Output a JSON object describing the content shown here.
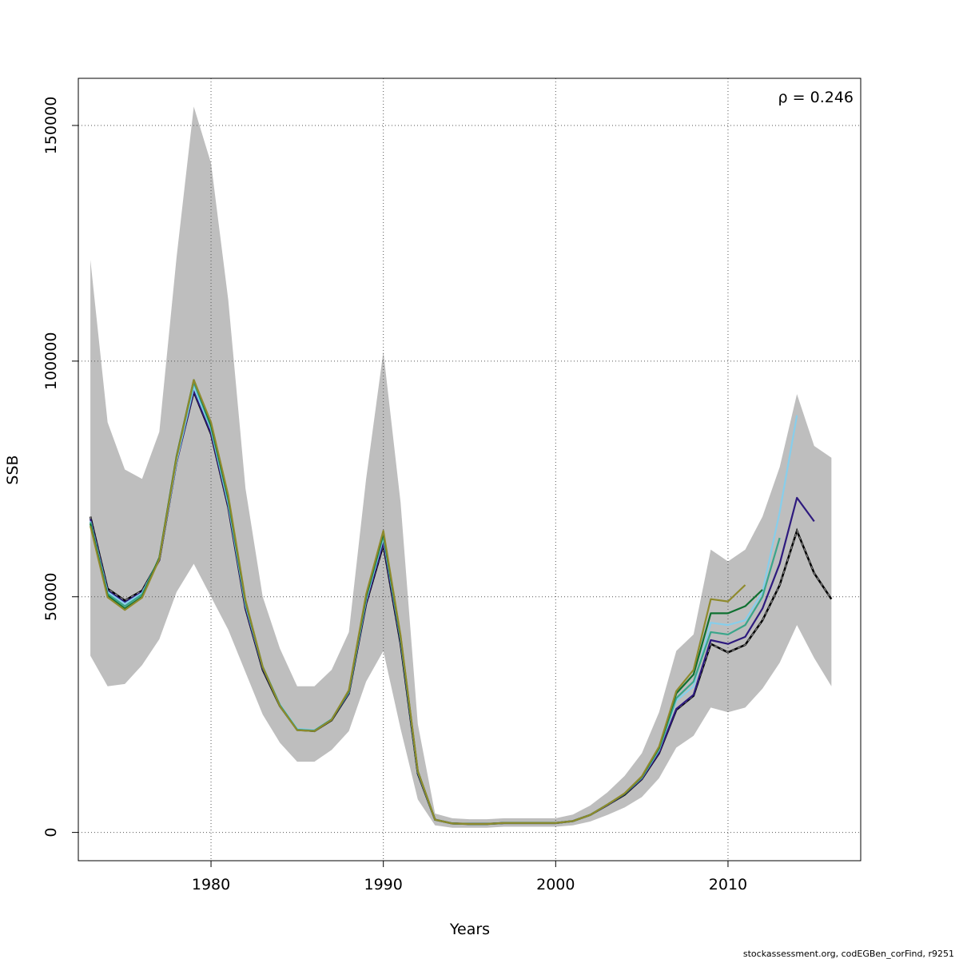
{
  "chart_data": {
    "type": "line",
    "title": "",
    "xlabel": "Years",
    "ylabel": "SSB",
    "xlim": [
      1972.3,
      2017.7
    ],
    "ylim": [
      -6000,
      160000
    ],
    "xticks": [
      "1980",
      "1990",
      "2000",
      "2010"
    ],
    "xtick_values": [
      1980,
      1990,
      2000,
      2010
    ],
    "yticks": [
      "0",
      "50000",
      "100000",
      "150000"
    ],
    "ytick_values": [
      0,
      50000,
      100000,
      150000
    ],
    "grid": true,
    "annotation": "ρ = 0.246",
    "band": {
      "color": "#bebebe",
      "x": [
        1973,
        1974,
        1975,
        1976,
        1977,
        1978,
        1979,
        1980,
        1981,
        1982,
        1983,
        1984,
        1985,
        1986,
        1987,
        1988,
        1989,
        1990,
        1991,
        1992,
        1993,
        1994,
        1995,
        1996,
        1997,
        1998,
        1999,
        2000,
        2001,
        2002,
        2003,
        2004,
        2005,
        2006,
        2007,
        2008,
        2009,
        2010,
        2011,
        2012,
        2013,
        2014,
        2015,
        2016
      ],
      "upper": [
        121500,
        87000,
        77000,
        75000,
        85000,
        122000,
        154000,
        142000,
        113000,
        73000,
        50000,
        39000,
        31000,
        31000,
        34500,
        42500,
        75000,
        102000,
        70000,
        23000,
        4000,
        3000,
        2800,
        2800,
        3000,
        3000,
        3000,
        3000,
        3800,
        5700,
        8500,
        12000,
        16800,
        25500,
        38500,
        42000,
        60000,
        57500,
        60000,
        67000,
        77500,
        93000,
        82000,
        79500
      ],
      "lower": [
        37500,
        31000,
        31500,
        35500,
        41000,
        51000,
        57000,
        50000,
        43000,
        34000,
        25000,
        19000,
        15000,
        15000,
        17500,
        21500,
        32000,
        38500,
        22000,
        7000,
        1500,
        1000,
        1000,
        1000,
        1200,
        1200,
        1200,
        1200,
        1500,
        2300,
        3700,
        5300,
        7500,
        11500,
        18000,
        20500,
        26500,
        25500,
        26500,
        30500,
        36000,
        44000,
        37000,
        31000
      ]
    },
    "series": [
      {
        "color": "#000000",
        "dashed": true,
        "x": [
          1973,
          1974,
          1975,
          1976,
          1977,
          1978,
          1979,
          1980,
          1981,
          1982,
          1983,
          1984,
          1985,
          1986,
          1987,
          1988,
          1989,
          1990,
          1991,
          1992,
          1993,
          1994,
          1995,
          1996,
          1997,
          1998,
          1999,
          2000,
          2001,
          2002,
          2003,
          2004,
          2005,
          2006,
          2007,
          2008,
          2009,
          2010,
          2011,
          2012,
          2013,
          2014,
          2015,
          2016
        ],
        "y": [
          67000,
          51700,
          49200,
          51300,
          57800,
          78700,
          93500,
          84500,
          69000,
          47500,
          34500,
          26800,
          21800,
          21500,
          23800,
          29500,
          48500,
          61000,
          40000,
          12500,
          2700,
          1900,
          1800,
          1800,
          2000,
          2000,
          2000,
          2000,
          2400,
          3700,
          5800,
          8000,
          11300,
          16800,
          26000,
          29000,
          40000,
          38200,
          39800,
          45000,
          52500,
          64000,
          55000,
          49500
        ]
      },
      {
        "color": "#2e1a7e",
        "dashed": false,
        "x": [
          1973,
          1974,
          1975,
          1976,
          1977,
          1978,
          1979,
          1980,
          1981,
          1982,
          1983,
          1984,
          1985,
          1986,
          1987,
          1988,
          1989,
          1990,
          1991,
          1992,
          1993,
          1994,
          1995,
          1996,
          1997,
          1998,
          1999,
          2000,
          2001,
          2002,
          2003,
          2004,
          2005,
          2006,
          2007,
          2008,
          2009,
          2010,
          2011,
          2012,
          2013,
          2014,
          2015
        ],
        "y": [
          66500,
          51300,
          48800,
          51000,
          57800,
          78500,
          93700,
          84700,
          69200,
          47700,
          34700,
          26900,
          21900,
          21600,
          23900,
          29600,
          48700,
          61500,
          40500,
          12700,
          2700,
          1900,
          1800,
          1800,
          2000,
          2000,
          2000,
          2000,
          2400,
          3700,
          5800,
          8100,
          11400,
          16900,
          26200,
          29200,
          40800,
          40000,
          41500,
          47500,
          57000,
          71000,
          66000
        ]
      },
      {
        "color": "#87ceeb",
        "dashed": false,
        "x": [
          1973,
          1974,
          1975,
          1976,
          1977,
          1978,
          1979,
          1980,
          1981,
          1982,
          1983,
          1984,
          1985,
          1986,
          1987,
          1988,
          1989,
          1990,
          1991,
          1992,
          1993,
          1994,
          1995,
          1996,
          1997,
          1998,
          1999,
          2000,
          2001,
          2002,
          2003,
          2004,
          2005,
          2006,
          2007,
          2008,
          2009,
          2010,
          2011,
          2012,
          2013,
          2014
        ],
        "y": [
          66000,
          51000,
          48500,
          50800,
          58000,
          78800,
          94500,
          85500,
          69800,
          48300,
          35000,
          27100,
          22000,
          21700,
          24000,
          29800,
          49300,
          62500,
          41000,
          12800,
          2700,
          1900,
          1800,
          1800,
          2000,
          2000,
          2000,
          2000,
          2400,
          3700,
          5900,
          8200,
          11600,
          17500,
          28000,
          31000,
          44500,
          44000,
          45000,
          51000,
          68000,
          88500
        ]
      },
      {
        "color": "#3aa58a",
        "dashed": false,
        "x": [
          1973,
          1974,
          1975,
          1976,
          1977,
          1978,
          1979,
          1980,
          1981,
          1982,
          1983,
          1984,
          1985,
          1986,
          1987,
          1988,
          1989,
          1990,
          1991,
          1992,
          1993,
          1994,
          1995,
          1996,
          1997,
          1998,
          1999,
          2000,
          2001,
          2002,
          2003,
          2004,
          2005,
          2006,
          2007,
          2008,
          2009,
          2010,
          2011,
          2012,
          2013
        ],
        "y": [
          65800,
          50600,
          48000,
          50500,
          58200,
          79500,
          95500,
          86000,
          70500,
          48800,
          35200,
          27000,
          21800,
          21600,
          24000,
          30000,
          49800,
          63000,
          41200,
          12900,
          2700,
          1900,
          1800,
          1800,
          2000,
          2000,
          2000,
          2000,
          2400,
          3700,
          5900,
          8200,
          11700,
          17700,
          28500,
          32000,
          42500,
          42000,
          44000,
          50000,
          62500
        ]
      },
      {
        "color": "#0f7030",
        "dashed": false,
        "x": [
          1973,
          1974,
          1975,
          1976,
          1977,
          1978,
          1979,
          1980,
          1981,
          1982,
          1983,
          1984,
          1985,
          1986,
          1987,
          1988,
          1989,
          1990,
          1991,
          1992,
          1993,
          1994,
          1995,
          1996,
          1997,
          1998,
          1999,
          2000,
          2001,
          2002,
          2003,
          2004,
          2005,
          2006,
          2007,
          2008,
          2009,
          2010,
          2011,
          2012
        ],
        "y": [
          65500,
          50200,
          47500,
          50000,
          58300,
          79800,
          96000,
          86500,
          71000,
          49000,
          35000,
          26800,
          21700,
          21500,
          23900,
          30000,
          50000,
          63500,
          41500,
          13000,
          2700,
          1900,
          1800,
          1800,
          2000,
          2000,
          2000,
          2000,
          2400,
          3700,
          5900,
          8200,
          11800,
          18000,
          29500,
          33500,
          46500,
          46500,
          48000,
          51500
        ]
      },
      {
        "color": "#8f8a2c",
        "dashed": false,
        "x": [
          1973,
          1974,
          1975,
          1976,
          1977,
          1978,
          1979,
          1980,
          1981,
          1982,
          1983,
          1984,
          1985,
          1986,
          1987,
          1988,
          1989,
          1990,
          1991,
          1992,
          1993,
          1994,
          1995,
          1996,
          1997,
          1998,
          1999,
          2000,
          2001,
          2002,
          2003,
          2004,
          2005,
          2006,
          2007,
          2008,
          2009,
          2010,
          2011
        ],
        "y": [
          65000,
          49900,
          47200,
          49800,
          58000,
          79500,
          96000,
          87000,
          71500,
          49300,
          35100,
          26800,
          21700,
          21500,
          23900,
          30200,
          50500,
          64000,
          41800,
          13000,
          2700,
          1900,
          1800,
          1800,
          2000,
          2000,
          2000,
          2000,
          2400,
          3700,
          5900,
          8300,
          11900,
          18200,
          30000,
          34500,
          49500,
          49000,
          52500
        ]
      }
    ]
  },
  "footer": "stockassessment.org, codEGBen_corFind, r9251"
}
